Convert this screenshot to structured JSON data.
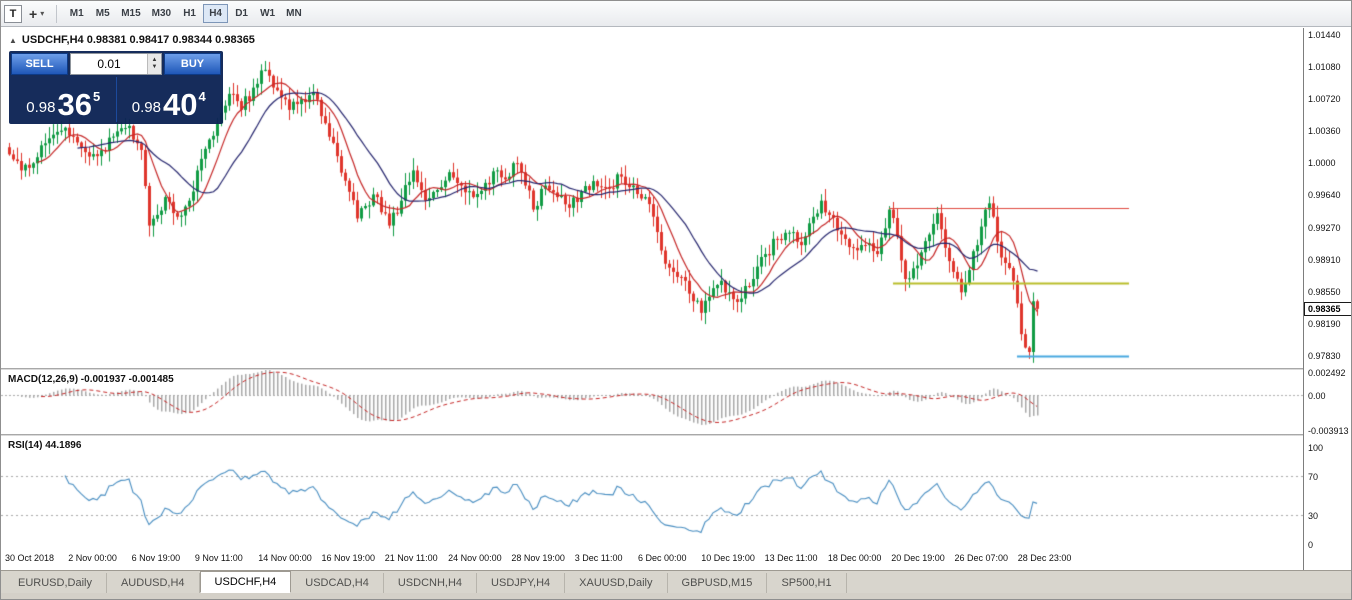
{
  "toolbar": {
    "t_icon": "T",
    "crosshair_caret": "▾",
    "timeframes": [
      {
        "label": "M1",
        "active": false
      },
      {
        "label": "M5",
        "active": false
      },
      {
        "label": "M15",
        "active": false
      },
      {
        "label": "M30",
        "active": false
      },
      {
        "label": "H1",
        "active": false
      },
      {
        "label": "H4",
        "active": true
      },
      {
        "label": "D1",
        "active": false
      },
      {
        "label": "W1",
        "active": false
      },
      {
        "label": "MN",
        "active": false
      }
    ]
  },
  "chart": {
    "header": {
      "symbol_line": "USDCHF,H4 0.98381 0.98417 0.98344 0.98365"
    },
    "trade_panel": {
      "sell_label": "SELL",
      "buy_label": "BUY",
      "lot": "0.01",
      "sell_price": {
        "base": "0.98",
        "big": "36",
        "sup": "5"
      },
      "buy_price": {
        "base": "0.98",
        "big": "40",
        "sup": "4"
      }
    },
    "price_scale": [
      "1.01440",
      "1.01080",
      "1.00720",
      "1.00360",
      "1.0000",
      "0.99640",
      "0.99270",
      "0.98910",
      "0.98550",
      "0.98190",
      "0.97830"
    ],
    "current_price": "0.98365"
  },
  "macd": {
    "label": "MACD(12,26,9) -0.001937 -0.001485",
    "scale": {
      "top": "0.002492",
      "zero": "0.00",
      "bottom": "-0.003913"
    }
  },
  "rsi": {
    "label": "RSI(14) 44.1896",
    "scale": [
      "100",
      "70",
      "30",
      "0"
    ]
  },
  "date_axis": [
    "30 Oct 2018",
    "2 Nov 00:00",
    "6 Nov 19:00",
    "9 Nov 11:00",
    "14 Nov 00:00",
    "16 Nov 19:00",
    "21 Nov 11:00",
    "24 Nov 00:00",
    "28 Nov 19:00",
    "3 Dec 11:00",
    "6 Dec 00:00",
    "10 Dec 19:00",
    "13 Dec 11:00",
    "18 Dec 00:00",
    "20 Dec 19:00",
    "26 Dec 07:00",
    "28 Dec 23:00"
  ],
  "tabs": [
    {
      "label": "EURUSD,Daily",
      "active": false
    },
    {
      "label": "AUDUSD,H4",
      "active": false
    },
    {
      "label": "USDCHF,H4",
      "active": true
    },
    {
      "label": "USDCAD,H4",
      "active": false
    },
    {
      "label": "USDCNH,H4",
      "active": false
    },
    {
      "label": "USDJPY,H4",
      "active": false
    },
    {
      "label": "XAUUSD,Daily",
      "active": false
    },
    {
      "label": "GBPUSD,M15",
      "active": false
    },
    {
      "label": "SP500,H1",
      "active": false
    }
  ],
  "chart_data": {
    "type": "candlestick",
    "symbol": "USDCHF",
    "timeframe": "H4",
    "last_bar_ohlc": {
      "open": 0.98381,
      "high": 0.98417,
      "low": 0.98344,
      "close": 0.98365
    },
    "bars": 258,
    "close_waypoints": [
      [
        0,
        1.001
      ],
      [
        3,
        0.9992
      ],
      [
        6,
        1.0
      ],
      [
        10,
        1.0028
      ],
      [
        14,
        1.004
      ],
      [
        18,
        1.0018
      ],
      [
        22,
        1.0008
      ],
      [
        26,
        1.003
      ],
      [
        30,
        1.0042
      ],
      [
        33,
        1.0015
      ],
      [
        35,
        0.993
      ],
      [
        37,
        0.9942
      ],
      [
        39,
        0.9962
      ],
      [
        42,
        0.994
      ],
      [
        45,
        0.9958
      ],
      [
        48,
        1.0005
      ],
      [
        52,
        1.0045
      ],
      [
        55,
        1.0078
      ],
      [
        58,
        1.006
      ],
      [
        61,
        1.0085
      ],
      [
        64,
        1.0105
      ],
      [
        67,
        1.0082
      ],
      [
        70,
        1.006
      ],
      [
        73,
        1.0072
      ],
      [
        76,
        1.008
      ],
      [
        79,
        1.0045
      ],
      [
        82,
        1.0008
      ],
      [
        85,
        0.9968
      ],
      [
        87,
        0.9938
      ],
      [
        89,
        0.9952
      ],
      [
        91,
        0.9965
      ],
      [
        93,
        0.9945
      ],
      [
        95,
        0.993
      ],
      [
        98,
        0.9958
      ],
      [
        101,
        0.9992
      ],
      [
        104,
        0.9958
      ],
      [
        107,
        0.997
      ],
      [
        110,
        0.999
      ],
      [
        113,
        0.9975
      ],
      [
        116,
        0.9962
      ],
      [
        119,
        0.9978
      ],
      [
        122,
        0.9992
      ],
      [
        125,
        0.9985
      ],
      [
        127,
        1.0
      ],
      [
        129,
        0.9975
      ],
      [
        131,
        0.9948
      ],
      [
        134,
        0.9975
      ],
      [
        137,
        0.9962
      ],
      [
        140,
        0.995
      ],
      [
        143,
        0.9968
      ],
      [
        146,
        0.998
      ],
      [
        150,
        0.9972
      ],
      [
        153,
        0.9985
      ],
      [
        156,
        0.9975
      ],
      [
        159,
        0.9962
      ],
      [
        161,
        0.994
      ],
      [
        163,
        0.9902
      ],
      [
        166,
        0.9878
      ],
      [
        169,
        0.9868
      ],
      [
        171,
        0.9845
      ],
      [
        173,
        0.9832
      ],
      [
        175,
        0.985
      ],
      [
        178,
        0.9868
      ],
      [
        180,
        0.9855
      ],
      [
        183,
        0.9848
      ],
      [
        186,
        0.987
      ],
      [
        189,
        0.9898
      ],
      [
        192,
        0.9915
      ],
      [
        195,
        0.9922
      ],
      [
        198,
        0.9908
      ],
      [
        201,
        0.994
      ],
      [
        203,
        0.9958
      ],
      [
        205,
        0.9942
      ],
      [
        208,
        0.992
      ],
      [
        211,
        0.9905
      ],
      [
        214,
        0.9908
      ],
      [
        217,
        0.9898
      ],
      [
        220,
        0.9948
      ],
      [
        222,
        0.9918
      ],
      [
        224,
        0.987
      ],
      [
        226,
        0.9882
      ],
      [
        228,
        0.99
      ],
      [
        230,
        0.992
      ],
      [
        232,
        0.9944
      ],
      [
        234,
        0.9905
      ],
      [
        236,
        0.9878
      ],
      [
        238,
        0.9855
      ],
      [
        240,
        0.988
      ],
      [
        242,
        0.9908
      ],
      [
        244,
        0.9948
      ],
      [
        245,
        0.9955
      ],
      [
        247,
        0.9912
      ],
      [
        249,
        0.9888
      ],
      [
        251,
        0.9868
      ],
      [
        253,
        0.9808
      ],
      [
        255,
        0.9788
      ],
      [
        256,
        0.9845
      ],
      [
        257,
        0.98365
      ]
    ],
    "y_axis": {
      "top": 1.0152,
      "bottom": 0.977,
      "ticks": [
        1.0144,
        1.0108,
        1.0072,
        1.0036,
        1.0,
        0.9964,
        0.9927,
        0.9891,
        0.9855,
        0.9819,
        0.9783
      ]
    },
    "hlines": [
      {
        "name": "resistance-line",
        "price": 0.995,
        "from_bar": 220,
        "to_bar": 280,
        "color": "#e0483e",
        "width": 1
      },
      {
        "name": "support-line",
        "price": 0.9866,
        "from_bar": 221,
        "to_bar": 280,
        "color": "#b9bd2a",
        "width": 2
      },
      {
        "name": "lower-support-line",
        "price": 0.9784,
        "from_bar": 252,
        "to_bar": 280,
        "color": "#47a8e0",
        "width": 2
      }
    ],
    "moving_averages": [
      {
        "period": 8,
        "color": "#c62828"
      },
      {
        "period": 18,
        "color": "#27276f"
      }
    ],
    "macd": {
      "fast": 12,
      "slow": 26,
      "signal": 9,
      "range": [
        -0.0043,
        0.00275
      ],
      "current_values": [
        -0.001937,
        -0.001485
      ]
    },
    "rsi": {
      "period": 14,
      "current": 44.1896,
      "levels": [
        30,
        70
      ],
      "range": [
        0,
        100
      ]
    },
    "colors": {
      "up": "#119b44",
      "down": "#df352c",
      "macd_hist": "#a9a9a9",
      "macd_signal": "#c62828",
      "rsi_line": "#4a8fc2"
    }
  }
}
